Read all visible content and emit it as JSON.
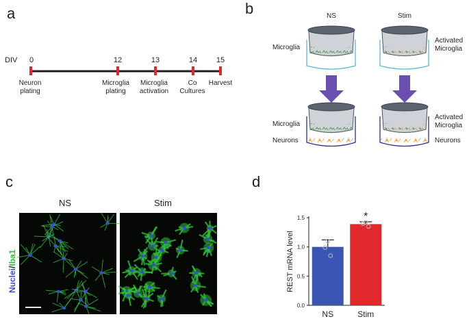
{
  "panels": {
    "a": {
      "letter": "a",
      "div_label": "DIV",
      "timeline": [
        {
          "day": "0",
          "label_lines": [
            "Neuron",
            "plating"
          ]
        },
        {
          "day": "12",
          "label_lines": [
            "Microglia",
            "plating"
          ]
        },
        {
          "day": "13",
          "label_lines": [
            "Microglia",
            "activation"
          ]
        },
        {
          "day": "14",
          "label_lines": [
            "Co",
            "Cultures"
          ]
        },
        {
          "day": "15",
          "label_lines": [
            "Harvest"
          ]
        }
      ]
    },
    "b": {
      "letter": "b",
      "columns": [
        "NS",
        "Stim"
      ],
      "top_left_label": "Microglia",
      "top_right_label_lines": [
        "Activated",
        "Microglia"
      ],
      "bottom_left_labels": [
        "Microglia",
        "Neurons"
      ],
      "bottom_right_labels": [
        "Activated",
        "Microglia",
        "Neurons"
      ]
    },
    "c": {
      "letter": "c",
      "columns": [
        "NS",
        "Stim"
      ],
      "stain_nuclei": "Nuclei",
      "stain_sep": "/",
      "stain_iba": "Iba1",
      "colors": {
        "nuclei": "#3a4fd0",
        "iba1": "#2fbf3a"
      }
    },
    "d": {
      "letter": "d",
      "chart_data": {
        "type": "bar",
        "categories": [
          "NS",
          "Stim"
        ],
        "values": [
          1.0,
          1.39
        ],
        "errors": [
          0.12,
          0.04
        ],
        "points": [
          [
            1.1,
            0.99,
            0.85
          ],
          [
            1.42,
            1.4,
            1.35
          ]
        ],
        "ylabel": "REST mRNA level",
        "ylim": [
          0,
          1.5
        ],
        "yticks": [
          "0.0",
          "0.5",
          "1.0",
          "1.5"
        ],
        "significance": [
          "",
          "*"
        ],
        "colors": [
          "#3a55b3",
          "#e0282d"
        ]
      }
    }
  }
}
